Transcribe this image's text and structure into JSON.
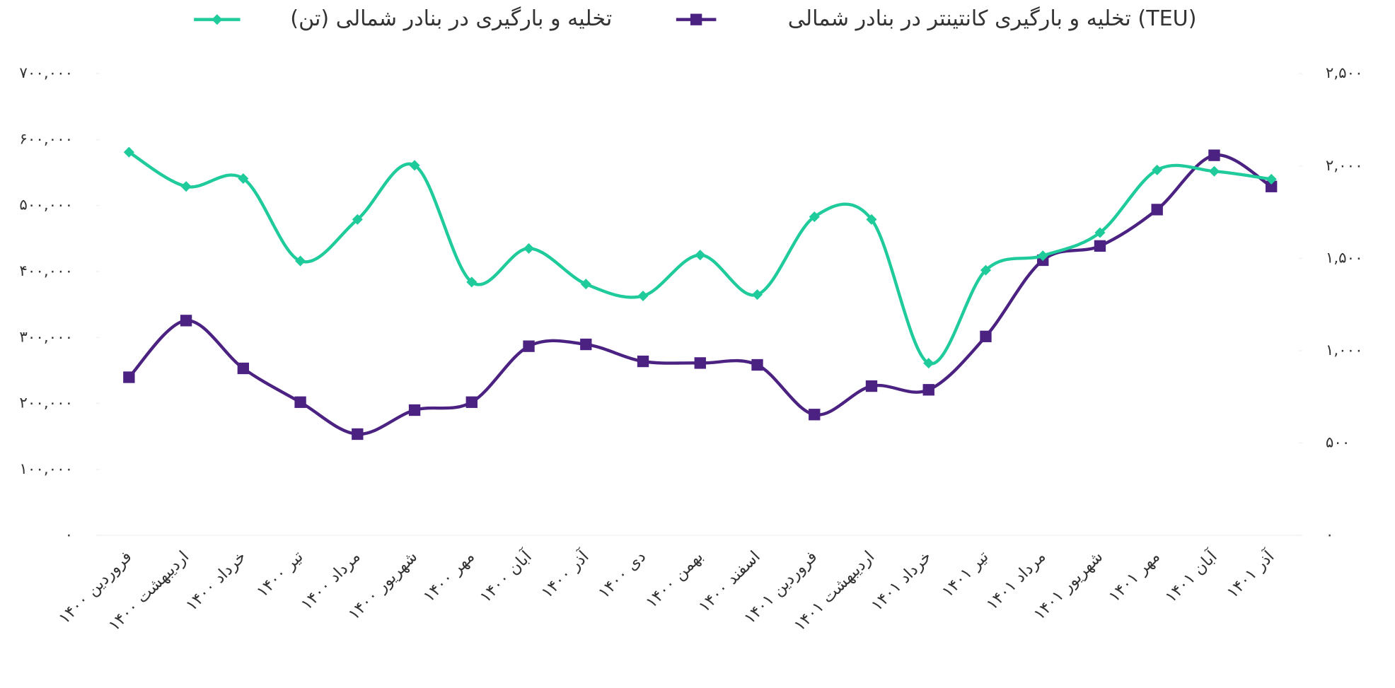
{
  "chart_data": {
    "type": "line",
    "categories": [
      "فروردین ۱۴۰۰",
      "اردیبهشت ۱۴۰۰",
      "خرداد ۱۴۰۰",
      "تیر ۱۴۰۰",
      "مرداد ۱۴۰۰",
      "شهریور ۱۴۰۰",
      "مهر ۱۴۰۰",
      "آبان ۱۴۰۰",
      "آذر ۱۴۰۰",
      "دی ۱۴۰۰",
      "بهمن ۱۴۰۰",
      "اسفند ۱۴۰۰",
      "فروردین ۱۴۰۱",
      "اردیبهشت ۱۴۰۱",
      "خرداد ۱۴۰۱",
      "تیر ۱۴۰۱",
      "مرداد ۱۴۰۱",
      "شهریور ۱۴۰۱",
      "مهر ۱۴۰۱",
      "آبان ۱۴۰۱",
      "آذر ۱۴۰۱"
    ],
    "series": [
      {
        "name": "تخلیه و بارگیری کانتینتر در بنادر شمالی (TEU)",
        "color": "#4b2182",
        "marker": "square",
        "axis": "y2",
        "values": [
          856,
          1163,
          904,
          721,
          548,
          678,
          721,
          1024,
          1034,
          942,
          933,
          923,
          654,
          808,
          788,
          1077,
          1490,
          1567,
          1764,
          2058,
          1889
        ]
      },
      {
        "name": "تخلیه و بارگیری در بنادر شمالی (تن)",
        "color": "#1fcb9b",
        "marker": "diamond",
        "values": [
          581000,
          529000,
          541000,
          416000,
          479000,
          561000,
          384000,
          435000,
          381000,
          363000,
          425000,
          365000,
          483000,
          479000,
          261000,
          402000,
          424000,
          459000,
          554000,
          552000,
          540000
        ]
      }
    ],
    "ylim": [
      0,
      700000
    ],
    "yticks": [
      {
        "value": 0,
        "label": "۰"
      },
      {
        "value": 100000,
        "label": "۱۰۰,۰۰۰"
      },
      {
        "value": 200000,
        "label": "۲۰۰,۰۰۰"
      },
      {
        "value": 300000,
        "label": "۳۰۰,۰۰۰"
      },
      {
        "value": 400000,
        "label": "۴۰۰,۰۰۰"
      },
      {
        "value": 500000,
        "label": "۵۰۰,۰۰۰"
      },
      {
        "value": 600000,
        "label": "۶۰۰,۰۰۰"
      },
      {
        "value": 700000,
        "label": "۷۰۰,۰۰۰"
      }
    ],
    "y2lim": [
      0,
      2500
    ],
    "y2ticks": [
      {
        "value": 0,
        "label": "۰"
      },
      {
        "value": 500,
        "label": "۵۰۰"
      },
      {
        "value": 1000,
        "label": "۱,۰۰۰"
      },
      {
        "value": 1500,
        "label": "۱,۵۰۰"
      },
      {
        "value": 2000,
        "label": "۲,۰۰۰"
      },
      {
        "value": 2500,
        "label": "۲,۵۰۰"
      }
    ]
  }
}
